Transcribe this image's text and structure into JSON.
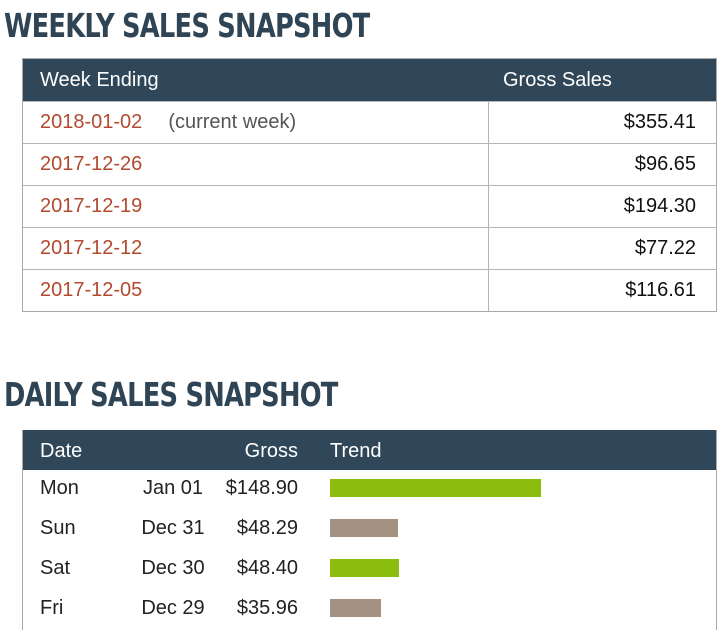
{
  "weekly": {
    "title": "WEEKLY SALES SNAPSHOT",
    "headers": {
      "week": "Week Ending",
      "gross": "Gross Sales"
    },
    "rows": [
      {
        "date": "2018-01-02",
        "note": "(current week)",
        "gross": "$355.41"
      },
      {
        "date": "2017-12-26",
        "note": "",
        "gross": "$96.65"
      },
      {
        "date": "2017-12-19",
        "note": "",
        "gross": "$194.30"
      },
      {
        "date": "2017-12-12",
        "note": "",
        "gross": "$77.22"
      },
      {
        "date": "2017-12-05",
        "note": "",
        "gross": "$116.61"
      }
    ]
  },
  "daily": {
    "title": "DAILY SALES SNAPSHOT",
    "headers": {
      "date": "Date",
      "gross": "Gross",
      "trend": "Trend"
    },
    "rows": [
      {
        "day": "Mon",
        "date": "Jan 01",
        "gross": "$148.90",
        "trend_value": 148.9,
        "trend_color": "#8bbd0f"
      },
      {
        "day": "Sun",
        "date": "Dec 31",
        "gross": "$48.29",
        "trend_value": 48.29,
        "trend_color": "#a39282"
      },
      {
        "day": "Sat",
        "date": "Dec 30",
        "gross": "$48.40",
        "trend_value": 48.4,
        "trend_color": "#8bbd0f"
      },
      {
        "day": "Fri",
        "date": "Dec 29",
        "gross": "$35.96",
        "trend_value": 35.96,
        "trend_color": "#a39282"
      }
    ]
  }
}
